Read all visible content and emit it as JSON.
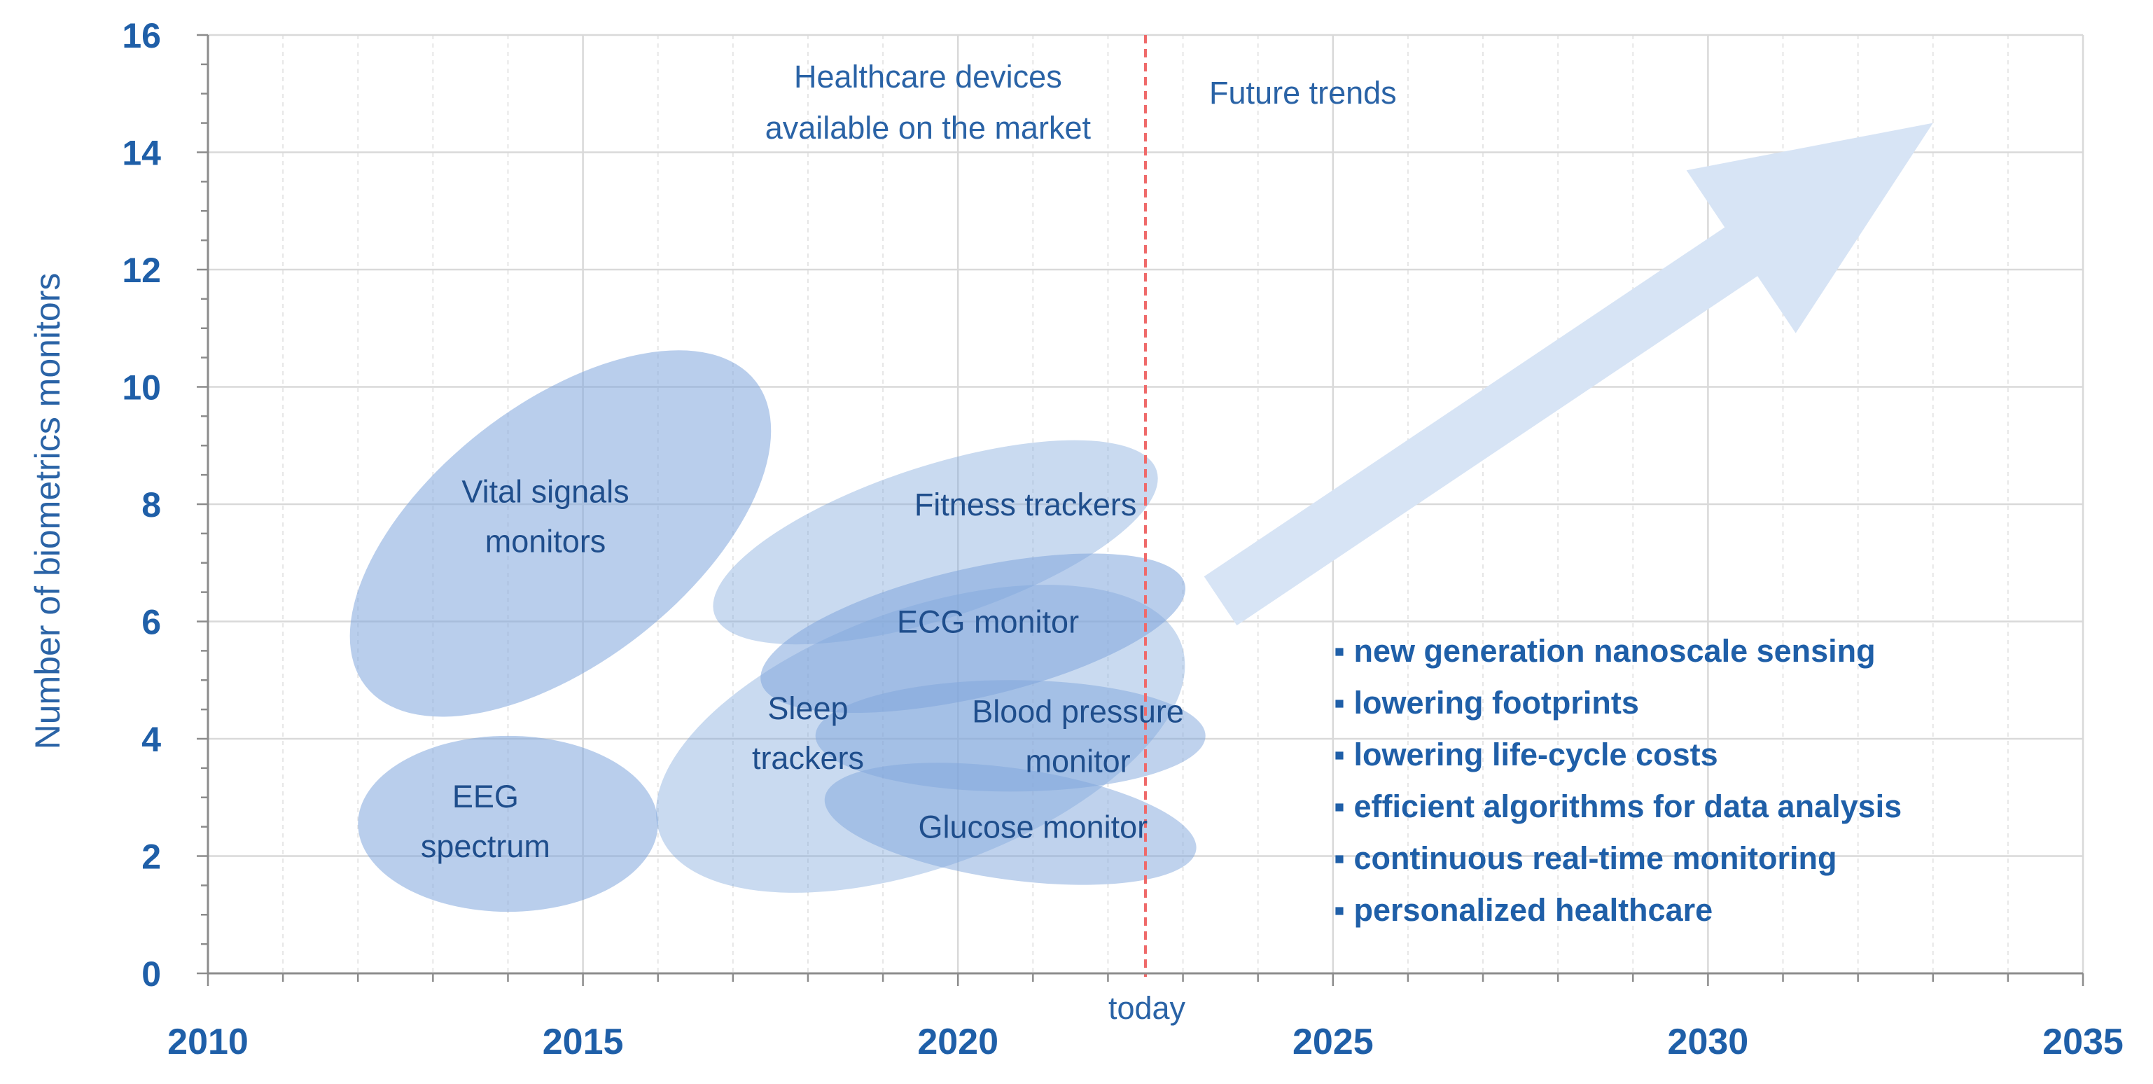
{
  "chart_data": {
    "type": "scatter",
    "title": "",
    "xlabel": "",
    "ylabel": "Number of biometrics monitors",
    "xlim": [
      2010,
      2035
    ],
    "ylim": [
      0,
      16
    ],
    "x_ticks": [
      "2010",
      "2015",
      "2020",
      "2025",
      "2030",
      "2035"
    ],
    "y_ticks": [
      "0",
      "2",
      "4",
      "6",
      "8",
      "10",
      "12",
      "14",
      "16"
    ],
    "grid": true,
    "today_year": 2022.5,
    "today_label": "today",
    "regions": [
      {
        "name": "Vital signals monitors",
        "lines": [
          "Vital signals",
          "monitors"
        ],
        "cx": 2014.7,
        "cy": 7.5,
        "rx": 3.3,
        "ry": 2.2,
        "angle": 38,
        "opacity": 0.55
      },
      {
        "name": "EEG spectrum",
        "lines": [
          "EEG",
          "spectrum"
        ],
        "cx": 2014.0,
        "cy": 2.55,
        "rx": 2.0,
        "ry": 1.5,
        "angle": 0,
        "opacity": 0.55
      },
      {
        "name": "Sleep trackers",
        "lines": [
          "Sleep",
          "trackers"
        ],
        "cx": 2019.5,
        "cy": 4.0,
        "rx": 3.7,
        "ry": 2.2,
        "angle": 20,
        "opacity": 0.42
      },
      {
        "name": "Fitness trackers",
        "lines": [
          "Fitness trackers"
        ],
        "cx": 2019.7,
        "cy": 7.35,
        "rx": 3.1,
        "ry": 1.3,
        "angle": 18,
        "opacity": 0.42
      },
      {
        "name": "ECG monitor",
        "lines": [
          "ECG monitor"
        ],
        "cx": 2020.2,
        "cy": 5.8,
        "rx": 2.9,
        "ry": 1.1,
        "angle": 13,
        "opacity": 0.55
      },
      {
        "name": "Blood pressure monitor",
        "lines": [
          "Blood pressure",
          "monitor"
        ],
        "cx": 2020.7,
        "cy": 4.05,
        "rx": 2.6,
        "ry": 0.95,
        "angle": 0,
        "opacity": 0.5
      },
      {
        "name": "Glucose monitor",
        "lines": [
          "Glucose monitor"
        ],
        "cx": 2020.7,
        "cy": 2.55,
        "rx": 2.5,
        "ry": 0.95,
        "angle": -8,
        "opacity": 0.5
      }
    ],
    "headers": {
      "left": [
        "Healthcare devices",
        "available on the market"
      ],
      "right": "Future trends"
    },
    "trend_arrow": {
      "from": [
        2023.5,
        6.35
      ],
      "to": [
        2033.0,
        14.5
      ]
    },
    "future_trends": [
      "▪ new generation nanoscale sensing",
      "▪ lowering footprints",
      "▪ lowering life-cycle costs",
      "▪ efficient algorithms for data analysis",
      "▪ continuous real-time monitoring",
      "▪ personalized healthcare"
    ]
  },
  "colors": {
    "ellipse": "#7fa6dc",
    "arrow": "#d7e4f5",
    "today_line": "#ef6a6a",
    "grid": "#d9d9d9",
    "grid_minor": "#e6e6e6",
    "axis": "#8c8c8c"
  }
}
